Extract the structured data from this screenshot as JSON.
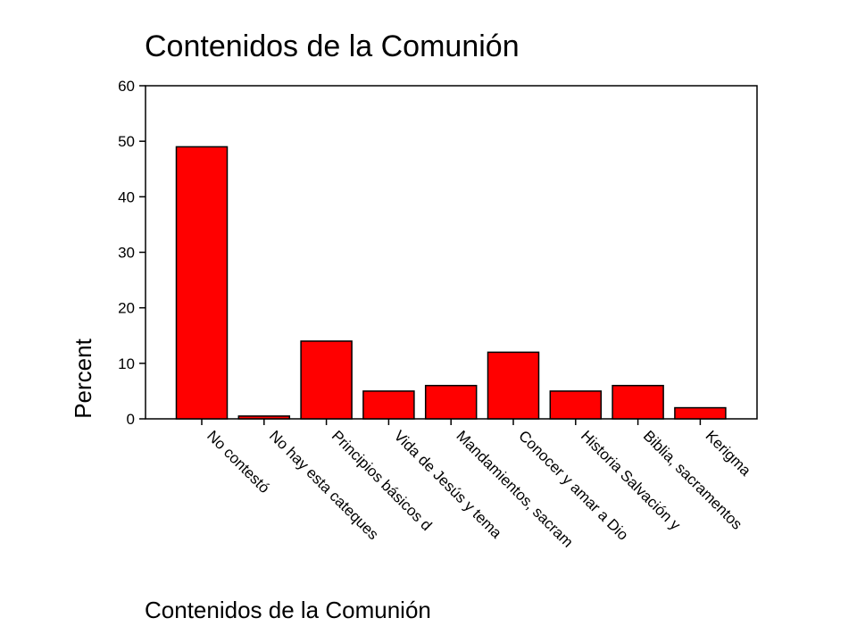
{
  "chart_data": {
    "type": "bar",
    "title": "Contenidos de la Comunión",
    "xlabel": "Contenidos de la Comunión",
    "ylabel": "Percent",
    "ylim": [
      0,
      60
    ],
    "yticks": [
      0,
      10,
      20,
      30,
      40,
      50,
      60
    ],
    "categories": [
      "No contestó",
      "No hay esta cateques",
      "Principios básicos d",
      "Vida de Jesús y tema",
      "Mandamientos, sacram",
      "Conocer y amar a Dio",
      "Historia Salvación y",
      "Biblia, sacramentos",
      "Kerigma"
    ],
    "values": [
      49,
      0.5,
      14,
      5,
      6,
      12,
      5,
      6,
      2
    ],
    "bar_color": "#ff0000",
    "grid": false,
    "legend": "none"
  }
}
